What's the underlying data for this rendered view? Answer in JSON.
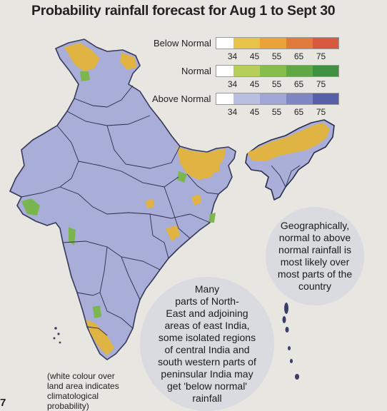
{
  "title": "Probability rainfall forecast for Aug 1 to Sept 30",
  "legend": {
    "categories": [
      {
        "label": "Below Normal",
        "colors": [
          "#ffffff",
          "#e8c34a",
          "#eaa339",
          "#e07b3b",
          "#d8593d"
        ]
      },
      {
        "label": "Normal",
        "colors": [
          "#ffffff",
          "#b5cf5a",
          "#86bc4c",
          "#5fa843",
          "#3e9140"
        ]
      },
      {
        "label": "Above Normal",
        "colors": [
          "#ffffff",
          "#b8bfe0",
          "#9ea7d5",
          "#7e86c4",
          "#565fa8"
        ]
      }
    ],
    "ticks": [
      "34",
      "45",
      "55",
      "65",
      "75"
    ]
  },
  "colors": {
    "map_base": "#a9afd9",
    "map_border": "#2b2b4a",
    "below_normal_patch": "#e3b43b",
    "normal_patch": "#79b648",
    "bubble_fill": "#d9dbe0"
  },
  "annotations": {
    "right_bubble": "Geographically,\nnormal to above\nnormal rainfall is\nmost likely over\nmost parts of the\ncountry",
    "center_bubble": "Many\nparts of North-\nEast and adjoining\nareas of east India,\nsome isolated regions\nof central India and\nsouth western parts of\npeninsular India may\nget 'below normal'\nrainfall",
    "footnote": "(white colour over\nland area indicates\nclimatological\nprobability)"
  },
  "page_number": "7"
}
